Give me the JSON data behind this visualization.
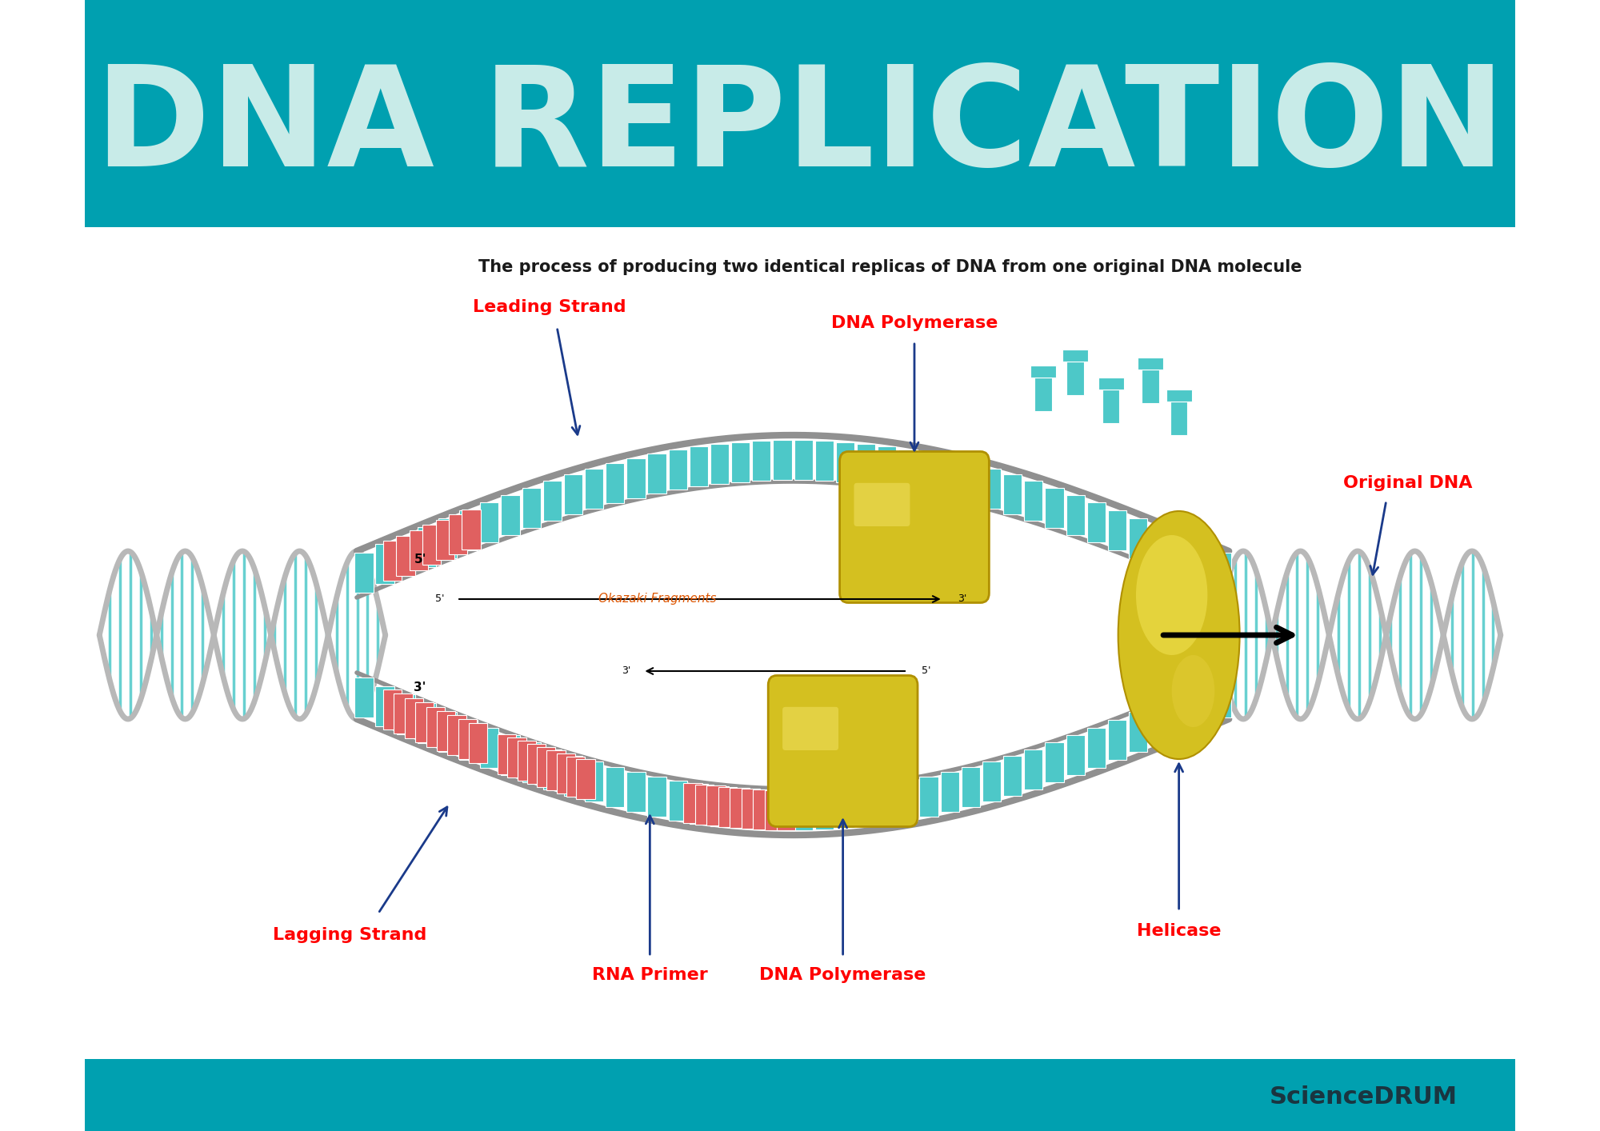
{
  "title": "DNA REPLICATION",
  "title_color": "#c8ebe8",
  "title_bg": "#00a0b0",
  "subtitle": "The process of producing two identical replicas of DNA from one original DNA molecule",
  "subtitle_fontsize": 16,
  "footer_bg": "#00a0b0",
  "footer_text": "ScienceDRUM",
  "footer_text_color": "#1a3540",
  "bg_color": "#ffffff",
  "label_leading": "Leading Strand",
  "label_lagging": "Lagging Strand",
  "label_dna_poly_top": "DNA Polymerase",
  "label_dna_poly_bottom": "DNA Polymerase",
  "label_rna_primer": "RNA Primer",
  "label_okazaki": "Okazaki Fragments",
  "label_helicase": "Helicase",
  "label_original_dna": "Original DNA",
  "label_color_red": "#ff0000",
  "label_color_blue": "#1a3a8a",
  "teal_color": "#4dc8c8",
  "gray_color": "#a0a0a0",
  "gold_color": "#e8c840",
  "pink_color": "#e87070"
}
